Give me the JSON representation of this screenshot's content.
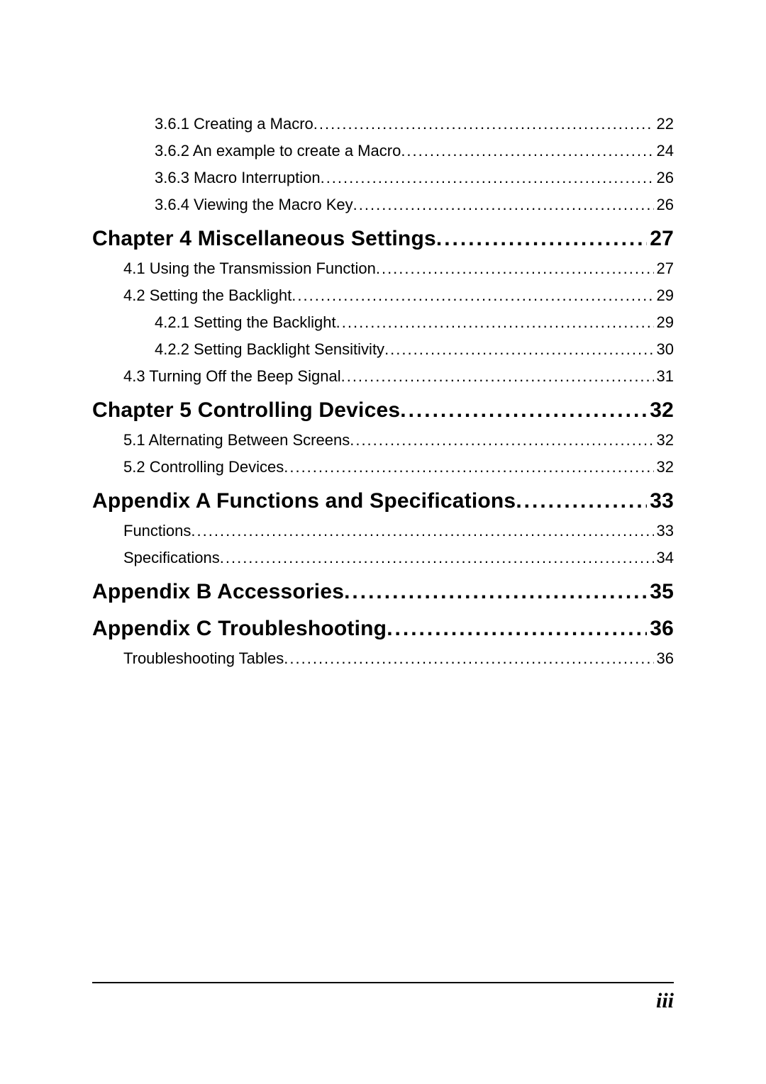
{
  "toc": {
    "entries": [
      {
        "level": "level-2",
        "label": "3.6.1 Creating a Macro",
        "page": "22"
      },
      {
        "level": "level-2",
        "label": "3.6.2  An example to create a Macro",
        "page": "24"
      },
      {
        "level": "level-2",
        "label": "3.6.3 Macro Interruption",
        "page": "26"
      },
      {
        "level": "level-2",
        "label": "3.6.4 Viewing the Macro Key",
        "page": "26"
      },
      {
        "level": "level-chapter",
        "label": "Chapter 4 Miscellaneous Settings",
        "page": "27"
      },
      {
        "level": "level-1",
        "label": "4.1 Using the Transmission Function",
        "page": "27"
      },
      {
        "level": "level-1",
        "label": "4.2 Setting the Backlight",
        "page": "29"
      },
      {
        "level": "level-2",
        "label": "4.2.1 Setting the Backlight",
        "page": "29"
      },
      {
        "level": "level-2",
        "label": "4.2.2 Setting Backlight  Sensitivity",
        "page": "30"
      },
      {
        "level": "level-1",
        "label": "4.3 Turning Off the Beep Signal",
        "page": "31"
      },
      {
        "level": "level-chapter",
        "label": "Chapter 5 Controlling Devices",
        "page": "32"
      },
      {
        "level": "level-1",
        "label": "5.1 Alternating Between Screens",
        "page": "32"
      },
      {
        "level": "level-1",
        "label": "5.2 Controlling Devices",
        "page": "32"
      },
      {
        "level": "level-chapter",
        "label": "Appendix A  Functions and Specifications",
        "page": "33"
      },
      {
        "level": "level-1",
        "label": "Functions",
        "page": "33"
      },
      {
        "level": "level-1",
        "label": "Specifications",
        "page": "34"
      },
      {
        "level": "level-chapter",
        "label": "Appendix B   Accessories",
        "page": "35"
      },
      {
        "level": "level-chapter",
        "label": "Appendix C   Troubleshooting",
        "page": "36"
      },
      {
        "level": "level-1",
        "label": "Troubleshooting Tables",
        "page": "36"
      }
    ]
  },
  "footer": {
    "page_number": "iii"
  },
  "style": {
    "text_color": "#000000",
    "background_color": "#ffffff",
    "chapter_fontsize": 30,
    "body_fontsize": 22,
    "footer_fontsize": 30
  }
}
